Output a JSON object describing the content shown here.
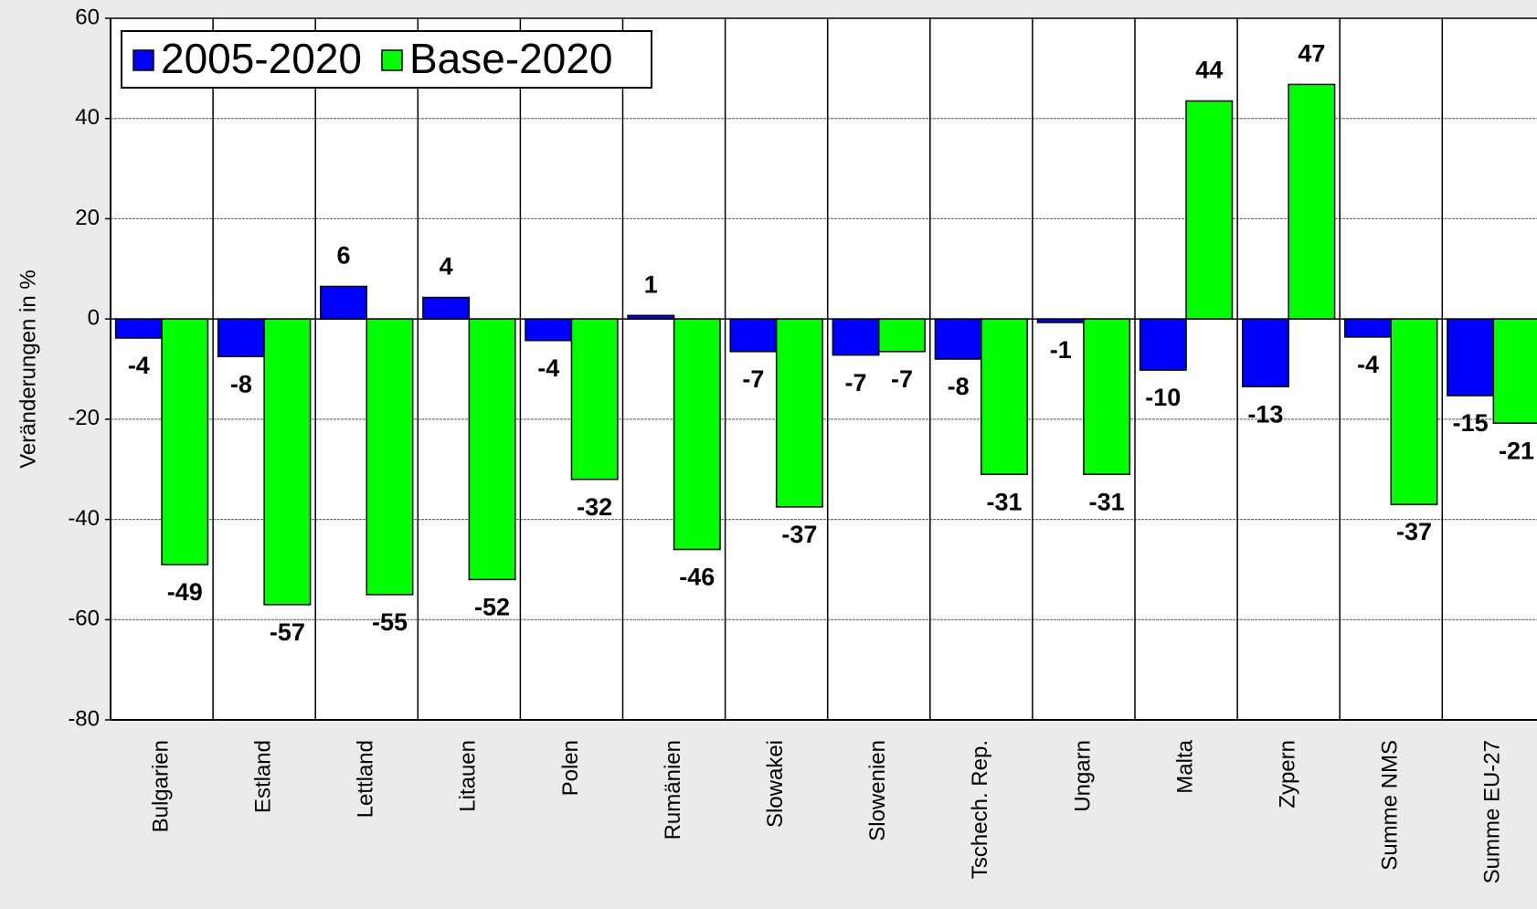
{
  "chart_data": {
    "type": "bar",
    "ylabel": "Veränderungen in %",
    "categories": [
      "Bulgarien",
      "Estland",
      "Lettland",
      "Litauen",
      "Polen",
      "Rumänien",
      "Slowakei",
      "Slowenien",
      "Tschech. Rep.",
      "Ungarn",
      "Malta",
      "Zypern",
      "Summe NMS",
      "Summe EU-27"
    ],
    "series": [
      {
        "name": "2005-2020",
        "color": "#0000ff",
        "values": [
          -3.8,
          -7.5,
          6.5,
          4.3,
          -4.3,
          0.7,
          -6.5,
          -7.2,
          -8,
          -0.7,
          -10.2,
          -13.5,
          -3.6,
          -15.3
        ],
        "value_labels": [
          "-4",
          "-8",
          "6",
          "4",
          "-4",
          "1",
          "-7",
          "-7",
          "-8",
          "-1",
          "-10",
          "-13",
          "-4",
          "-15"
        ]
      },
      {
        "name": "Base-2020",
        "color": "#00ff00",
        "values": [
          -49,
          -57,
          -55,
          -52,
          -32,
          -46,
          -37.5,
          -6.5,
          -31,
          -31,
          43.5,
          46.8,
          -37,
          -20.8
        ],
        "value_labels": [
          "-49",
          "-57",
          "-55",
          "-52",
          "-32",
          "-46",
          "-37",
          "-7",
          "-31",
          "-31",
          "44",
          "47",
          "-37",
          "-21"
        ]
      }
    ],
    "ylim": [
      -80,
      60
    ],
    "yticks": [
      -80,
      -60,
      -40,
      -20,
      0,
      20,
      40,
      60
    ],
    "grid": true,
    "legend": "top-left"
  }
}
